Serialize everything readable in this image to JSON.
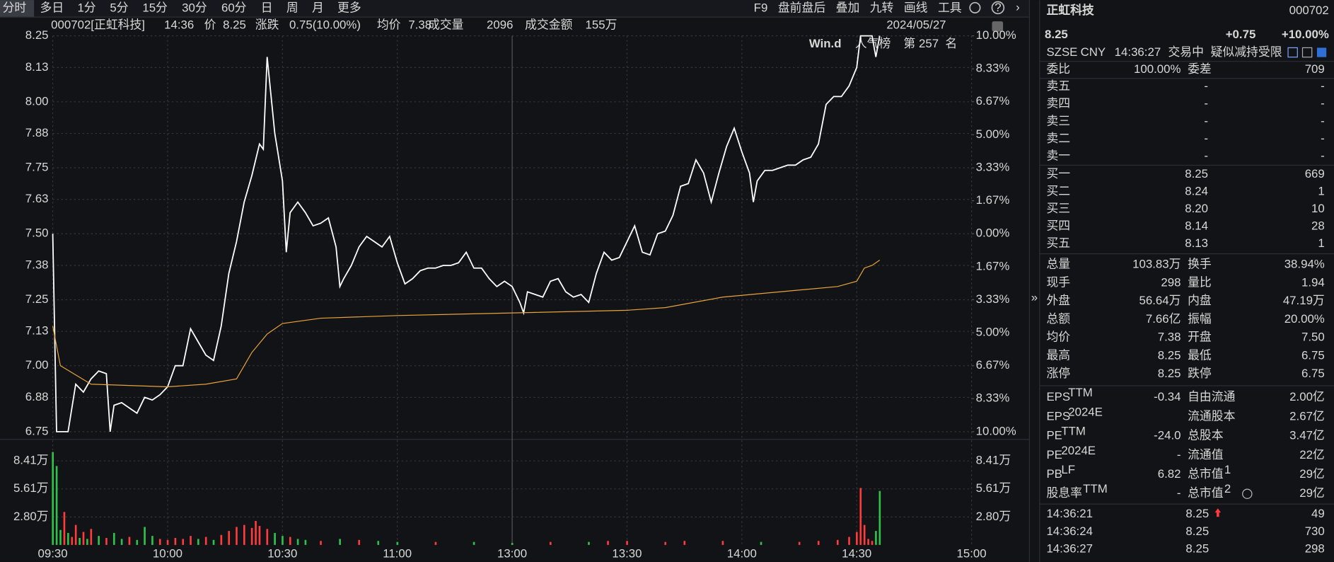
{
  "toolbar": {
    "periods": [
      "分时",
      "多日",
      "1分",
      "5分",
      "15分",
      "30分",
      "60分",
      "日",
      "周",
      "月",
      "更多"
    ],
    "tools": [
      "F9",
      "盘前盘后",
      "叠加",
      "九转",
      "画线",
      "工具"
    ],
    "date": "2024/05/27"
  },
  "header": {
    "security": "000702[正虹科技]",
    "time": "14:36",
    "price_label": "价",
    "price": 8.25,
    "change_label": "涨跌",
    "change": "0.75(10.00%)",
    "avg_label": "均价",
    "avg": 7.38,
    "volume_label": "成交量",
    "volume": 2096,
    "amount_label": "成交金额",
    "amount": "155万"
  },
  "badge": {
    "brand": "Win.d",
    "list": "人气榜",
    "prefix": "第",
    "rank": 257,
    "suffix": "名"
  },
  "chart_data": [
    {
      "type": "line",
      "xlim": [
        0,
        240
      ],
      "xticks": [
        {
          "value": 0,
          "label": "09:30"
        },
        {
          "value": 30,
          "label": "10:00"
        },
        {
          "value": 60,
          "label": "10:30"
        },
        {
          "value": 90,
          "label": "11:00"
        },
        {
          "value": 120,
          "label": "13:00"
        },
        {
          "value": 150,
          "label": "13:30"
        },
        {
          "value": 180,
          "label": "14:00"
        },
        {
          "value": 210,
          "label": "14:30"
        },
        {
          "value": 240,
          "label": "15:00"
        }
      ],
      "ylim": [
        6.75,
        8.25
      ],
      "yticks": [
        8.25,
        8.13,
        {
          "value": 8,
          "label": "8.00"
        },
        7.88,
        7.75,
        7.63,
        {
          "value": 7.5,
          "label": "7.50"
        },
        7.38,
        7.25,
        7.13,
        {
          "value": 7,
          "label": "7.00"
        },
        6.88,
        6.75
      ],
      "y2lim": [
        -10,
        10
      ],
      "y2ticks": [
        {
          "value": 10,
          "label": "10.00%"
        },
        {
          "value": 8.33,
          "label": "8.33%"
        },
        {
          "value": 6.67,
          "label": "6.67%"
        },
        {
          "value": 5,
          "label": "5.00%"
        },
        {
          "value": 3.33,
          "label": "3.33%"
        },
        {
          "value": 1.67,
          "label": "1.67%"
        },
        {
          "value": 0,
          "label": "0.00%"
        },
        {
          "value": -1.67,
          "label": "1.67%"
        },
        {
          "value": -3.33,
          "label": "3.33%"
        },
        {
          "value": -5,
          "label": "5.00%"
        },
        {
          "value": -6.67,
          "label": "6.67%"
        },
        {
          "value": -8.33,
          "label": "8.33%"
        },
        {
          "value": -10,
          "label": "10.00%"
        }
      ],
      "up_color": "#ff3b3b",
      "down_color": "#2fc24a",
      "grid": true,
      "series": [
        {
          "name": "价",
          "color": "#ffffff",
          "x": [
            0,
            1,
            2,
            4,
            6,
            8,
            10,
            12,
            14,
            15,
            16,
            18,
            20,
            22,
            24,
            26,
            28,
            30,
            32,
            34,
            36,
            38,
            40,
            42,
            44,
            46,
            48,
            50,
            52,
            54,
            55,
            56,
            58,
            60,
            61,
            62,
            64,
            66,
            68,
            70,
            72,
            74,
            75,
            76,
            78,
            80,
            82,
            84,
            86,
            88,
            90,
            92,
            94,
            96,
            98,
            100,
            102,
            104,
            106,
            108,
            110,
            112,
            114,
            116,
            118,
            120,
            122,
            123,
            124,
            126,
            128,
            130,
            132,
            134,
            136,
            138,
            140,
            142,
            144,
            146,
            148,
            150,
            152,
            154,
            156,
            158,
            160,
            162,
            164,
            166,
            168,
            170,
            172,
            174,
            176,
            178,
            180,
            182,
            183,
            184,
            186,
            188,
            190,
            192,
            194,
            196,
            198,
            200,
            202,
            204,
            206,
            208,
            210,
            211,
            214,
            215,
            216
          ],
          "values": [
            7.5,
            6.75,
            6.75,
            6.75,
            6.93,
            6.9,
            6.95,
            6.98,
            6.97,
            6.75,
            6.85,
            6.86,
            6.84,
            6.82,
            6.88,
            6.87,
            6.89,
            6.92,
            7.0,
            7.0,
            7.14,
            7.09,
            7.04,
            7.02,
            7.15,
            7.35,
            7.47,
            7.62,
            7.72,
            7.84,
            7.82,
            8.17,
            7.88,
            7.7,
            7.43,
            7.58,
            7.62,
            7.58,
            7.53,
            7.54,
            7.56,
            7.45,
            7.3,
            7.33,
            7.38,
            7.45,
            7.49,
            7.47,
            7.45,
            7.49,
            7.39,
            7.31,
            7.33,
            7.36,
            7.37,
            7.37,
            7.38,
            7.38,
            7.39,
            7.43,
            7.37,
            7.37,
            7.33,
            7.3,
            7.32,
            7.3,
            7.24,
            7.2,
            7.28,
            7.27,
            7.26,
            7.32,
            7.33,
            7.28,
            7.26,
            7.27,
            7.24,
            7.35,
            7.43,
            7.4,
            7.41,
            7.47,
            7.53,
            7.43,
            7.42,
            7.5,
            7.51,
            7.57,
            7.68,
            7.69,
            7.78,
            7.73,
            7.62,
            7.73,
            7.83,
            7.9,
            7.81,
            7.73,
            7.62,
            7.7,
            7.74,
            7.74,
            7.75,
            7.76,
            7.76,
            7.78,
            7.79,
            7.84,
            7.99,
            8.02,
            8.02,
            8.06,
            8.13,
            8.25,
            8.25,
            8.17,
            8.25
          ]
        },
        {
          "name": "均价",
          "color": "#e8a33a",
          "x": [
            0,
            2,
            10,
            30,
            40,
            48,
            52,
            56,
            60,
            70,
            90,
            120,
            150,
            160,
            175,
            190,
            205,
            210,
            212,
            214,
            216
          ],
          "values": [
            7.15,
            7.0,
            6.93,
            6.92,
            6.93,
            6.95,
            7.05,
            7.12,
            7.16,
            7.18,
            7.19,
            7.2,
            7.21,
            7.22,
            7.26,
            7.28,
            7.3,
            7.32,
            7.37,
            7.38,
            7.4
          ]
        }
      ]
    },
    {
      "type": "bar",
      "xlim": [
        0,
        240
      ],
      "ylim": [
        0,
        9.8
      ],
      "yticks": [
        {
          "value": 8.41,
          "label": "8.41万"
        },
        {
          "value": 5.61,
          "label": "5.61万"
        },
        {
          "value": 2.8,
          "label": "2.80万"
        }
      ],
      "x": [
        0,
        1,
        2,
        3,
        4,
        5,
        6,
        7,
        8,
        9,
        10,
        12,
        14,
        16,
        18,
        20,
        22,
        24,
        26,
        28,
        30,
        32,
        34,
        36,
        38,
        40,
        42,
        44,
        46,
        48,
        50,
        52,
        53,
        54,
        56,
        58,
        60,
        62,
        64,
        66,
        70,
        75,
        80,
        85,
        90,
        100,
        110,
        120,
        130,
        140,
        145,
        150,
        160,
        165,
        175,
        185,
        195,
        200,
        205,
        208,
        210,
        211,
        212,
        213,
        214,
        215,
        216
      ],
      "values": [
        9.3,
        7.9,
        1.5,
        3.3,
        1.2,
        0.8,
        2.0,
        0.7,
        1.3,
        0.6,
        1.6,
        0.9,
        0.7,
        1.2,
        0.6,
        0.8,
        0.5,
        1.8,
        0.9,
        0.6,
        0.5,
        0.7,
        0.6,
        0.9,
        0.6,
        0.8,
        0.5,
        1.0,
        1.4,
        1.8,
        2.0,
        1.7,
        2.4,
        1.9,
        1.6,
        1.2,
        0.9,
        0.8,
        0.6,
        0.5,
        0.4,
        0.6,
        0.5,
        0.4,
        0.3,
        0.3,
        0.3,
        0.2,
        0.3,
        0.3,
        0.4,
        0.4,
        0.3,
        0.4,
        0.4,
        0.3,
        0.3,
        0.4,
        0.5,
        0.8,
        1.3,
        5.7,
        2.0,
        0.6,
        0.4,
        1.4,
        5.4
      ],
      "colors": [
        "#2fc24a",
        "#2fc24a",
        "#2fc24a",
        "#ff3b3b",
        "#2fc24a",
        "#ff3b3b",
        "#ff3b3b",
        "#2fc24a",
        "#ff3b3b",
        "#2fc24a",
        "#ff3b3b",
        "#2fc24a",
        "#ff3b3b",
        "#2fc24a",
        "#2fc24a",
        "#ff3b3b",
        "#2fc24a",
        "#2fc24a",
        "#2fc24a",
        "#ff3b3b",
        "#ff3b3b",
        "#ff3b3b",
        "#ff3b3b",
        "#ff3b3b",
        "#2fc24a",
        "#ff3b3b",
        "#2fc24a",
        "#ff3b3b",
        "#ff3b3b",
        "#ff3b3b",
        "#ff3b3b",
        "#ff3b3b",
        "#ff3b3b",
        "#ff3b3b",
        "#ff3b3b",
        "#2fc24a",
        "#2fc24a",
        "#ff3b3b",
        "#2fc24a",
        "#2fc24a",
        "#ff3b3b",
        "#2fc24a",
        "#ff3b3b",
        "#2fc24a",
        "#2fc24a",
        "#ff3b3b",
        "#2fc24a",
        "#2fc24a",
        "#ff3b3b",
        "#2fc24a",
        "#ff3b3b",
        "#ff3b3b",
        "#ff3b3b",
        "#ff3b3b",
        "#ff3b3b",
        "#2fc24a",
        "#ff3b3b",
        "#ff3b3b",
        "#ff3b3b",
        "#ff3b3b",
        "#ff3b3b",
        "#ff3b3b",
        "#ff3b3b",
        "#ff3b3b",
        "#ff3b3b",
        "#2fc24a",
        "#2fc24a"
      ]
    }
  ],
  "quote": {
    "name": "正虹科技",
    "code": "000702",
    "price": 8.25,
    "change": "+0.75",
    "change_pct": "+10.00%",
    "status": [
      "SZSE",
      "CNY",
      "14:36:27",
      "交易中",
      "疑似减持受限"
    ],
    "ratio": [
      "委比",
      "100.00%",
      "委差",
      "709"
    ],
    "book": [
      [
        "卖五",
        "-",
        "-"
      ],
      [
        "卖四",
        "-",
        "-"
      ],
      [
        "卖三",
        "-",
        "-"
      ],
      [
        "卖二",
        "-",
        "-"
      ],
      [
        "卖一",
        "-",
        "-"
      ],
      [
        "买一",
        "8.25",
        "669"
      ],
      [
        "买二",
        "8.24",
        "1"
      ],
      [
        "买三",
        "8.20",
        "10"
      ],
      [
        "买四",
        "8.14",
        "28"
      ],
      [
        "买五",
        "8.13",
        "1"
      ]
    ],
    "stats": [
      [
        "总量",
        "103.83万",
        "换手",
        "38.94%"
      ],
      [
        "现手",
        "298",
        "量比",
        "1.94"
      ],
      [
        "外盘",
        "56.64万",
        "内盘",
        "47.19万"
      ],
      [
        "总额",
        "7.66亿",
        "振幅",
        "20.00%"
      ],
      [
        "均价",
        "7.38",
        "开盘",
        "7.50"
      ],
      [
        "最高",
        "8.25",
        "最低",
        "6.75"
      ],
      [
        "涨停",
        "8.25",
        "跌停",
        "6.75"
      ]
    ],
    "fundamentals": [
      {
        "label": "EPS",
        "sup": "TTM",
        "value": "-0.34",
        "label2": "自由流通",
        "value2": "2.00亿"
      },
      {
        "label": "EPS",
        "sup": "2024E",
        "label2": "流通股本",
        "value2": "2.67亿"
      },
      {
        "label": "PE",
        "sup": "TTM",
        "value": "-24.0",
        "label2": "总股本",
        "value2": "3.47亿"
      },
      {
        "label": "PE",
        "sup": "2024E",
        "value": "-",
        "label2": "流通值",
        "value2": "22亿"
      },
      {
        "label": "PB",
        "sup": "LF",
        "value": "6.82",
        "label2": "总市值",
        "sup2": "1",
        "value2": "29亿"
      },
      {
        "label": "股息率",
        "sup": "TTM",
        "value": "-",
        "label2": "总市值",
        "sup2": "2",
        "value2": "29亿"
      }
    ],
    "trades": [
      [
        "14:36:21",
        "8.25",
        "49"
      ],
      [
        "14:36:24",
        "8.25",
        "730"
      ],
      [
        "14:36:27",
        "8.25",
        "298"
      ]
    ]
  }
}
